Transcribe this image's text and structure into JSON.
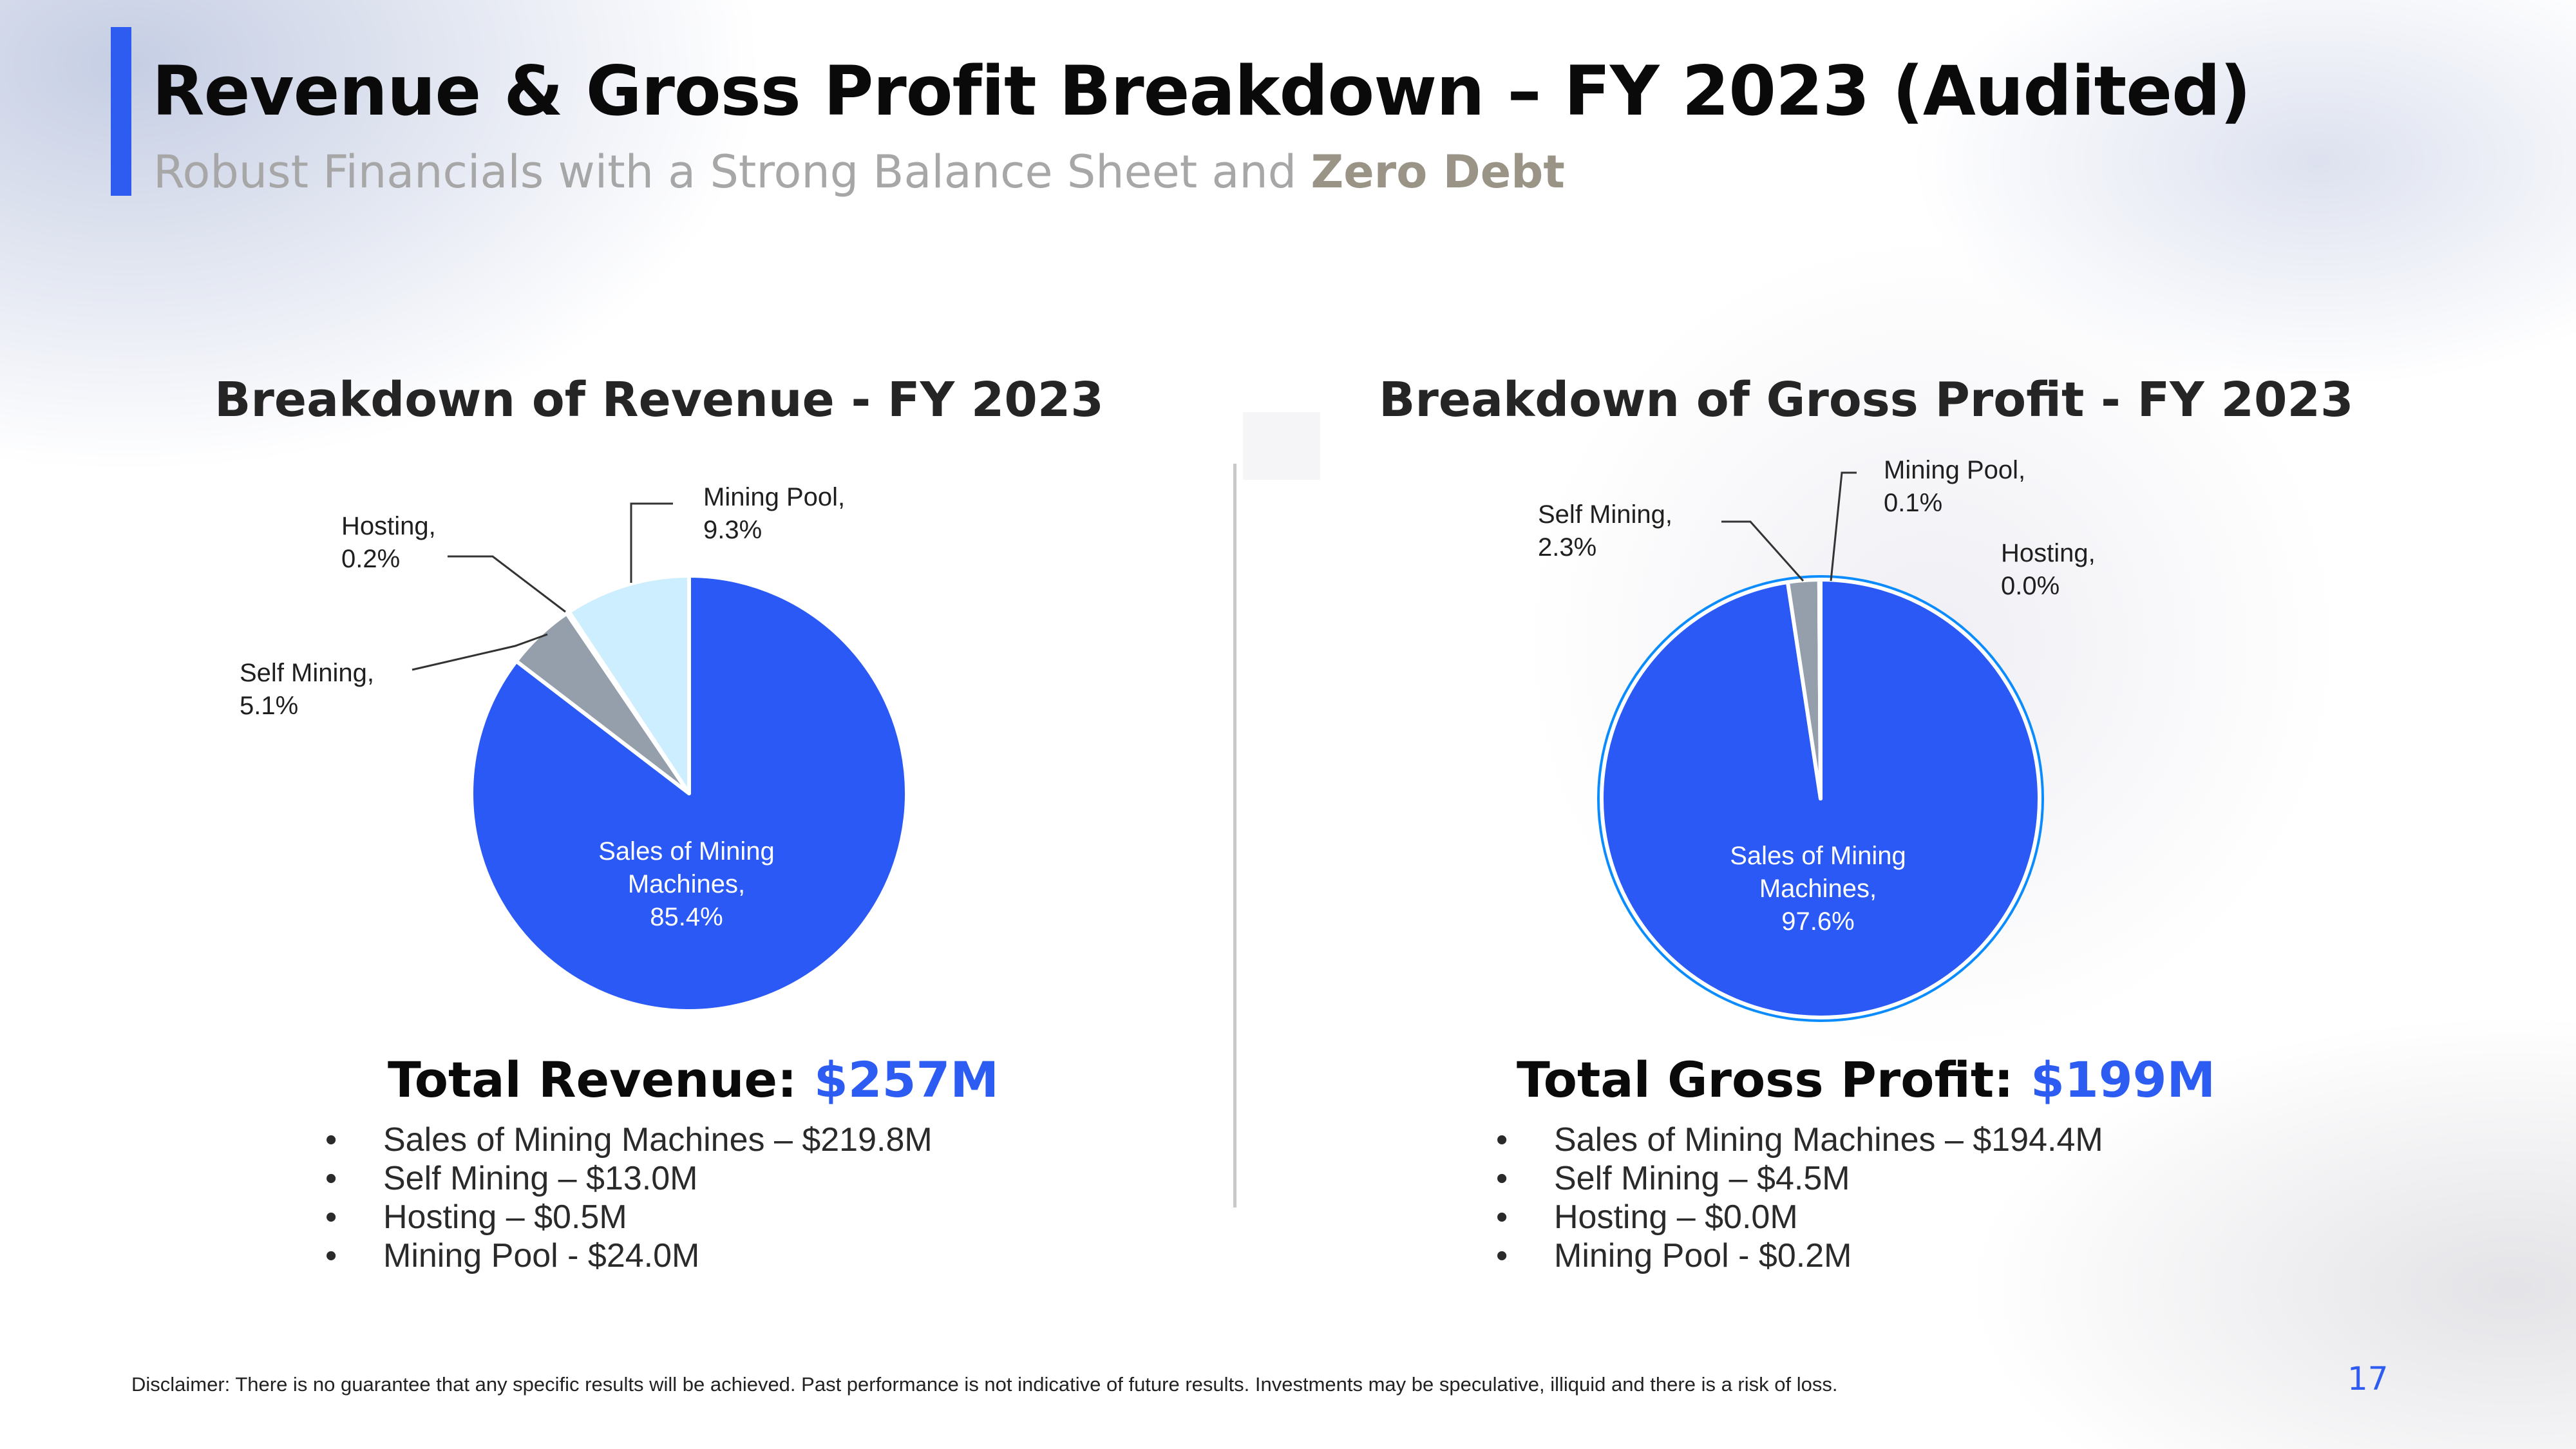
{
  "header": {
    "title": "Revenue & Gross Profit Breakdown – FY 2023 (Audited)",
    "subtitle_prefix": "Robust Financials with a Strong Balance Sheet and ",
    "subtitle_bold": "Zero Debt",
    "accent_color": "#2f5cf0"
  },
  "chart_data": [
    {
      "type": "pie",
      "title": "Breakdown of Revenue - FY 2023",
      "unit": "%",
      "slices": [
        {
          "label_line1": "Sales of Mining",
          "label_line2": "Machines,",
          "value_label": "85.4%",
          "value": 85.4,
          "color": "#2a59f6"
        },
        {
          "label_line1": "Self Mining,",
          "value_label": "5.1%",
          "value": 5.1,
          "color": "#949fab"
        },
        {
          "label_line1": "Hosting,",
          "value_label": "0.2%",
          "value": 0.2,
          "color": "#e4f4fd"
        },
        {
          "label_line1": "Mining Pool,",
          "value_label": "9.3%",
          "value": 9.3,
          "color": "#cdeefe"
        }
      ]
    },
    {
      "type": "pie",
      "title": "Breakdown of Gross Profit - FY 2023",
      "unit": "%",
      "slices": [
        {
          "label_line1": "Sales of Mining",
          "label_line2": "Machines,",
          "value_label": "97.6%",
          "value": 97.6,
          "color": "#2a59f6"
        },
        {
          "label_line1": "Self Mining,",
          "value_label": "2.3%",
          "value": 2.3,
          "color": "#949fab"
        },
        {
          "label_line1": "Hosting,",
          "value_label": "0.0%",
          "value": 0.0,
          "color": "#e4f4fd"
        },
        {
          "label_line1": "Mining Pool,",
          "value_label": "0.1%",
          "value": 0.1,
          "color": "#cdeefe"
        }
      ]
    }
  ],
  "revenue": {
    "total_label": "Total Revenue: ",
    "total_value": "$257M",
    "items": [
      "Sales of Mining Machines – $219.8M",
      "Self Mining – $13.0M",
      "Hosting – $0.5M",
      "Mining Pool - $24.0M"
    ]
  },
  "gross_profit": {
    "total_label": "Total Gross Profit: ",
    "total_value": "$199M",
    "items": [
      "Sales of Mining Machines – $194.4M",
      "Self Mining – $4.5M",
      "Hosting – $0.0M",
      "Mining Pool - $0.2M"
    ]
  },
  "footer": {
    "disclaimer": "Disclaimer: There is no guarantee that any specific results will be achieved. Past performance is not indicative of future results. Investments may be speculative, illiquid and there is a risk of loss.",
    "page_number": "17"
  }
}
